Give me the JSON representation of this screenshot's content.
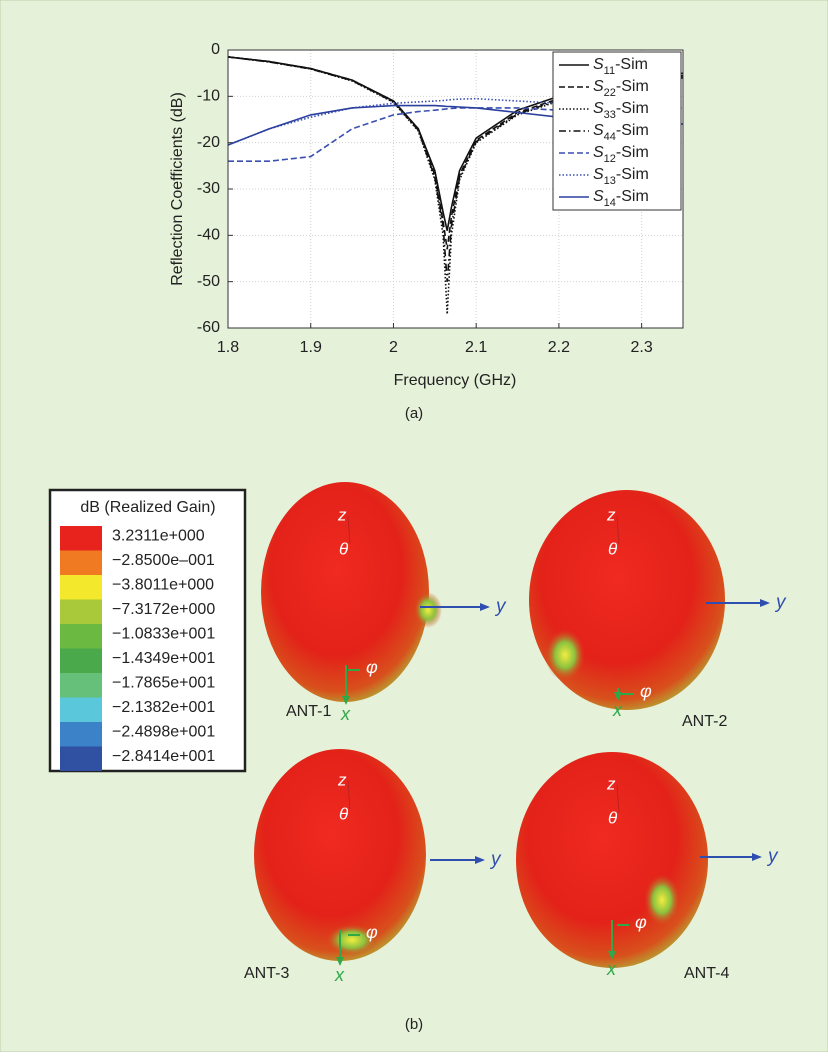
{
  "chart_data": {
    "type": "line",
    "y_label": "Reflection Coefficients (dB)",
    "x_label": "Frequency (GHz)",
    "panel_label": "(a)",
    "x": [
      1.8,
      1.85,
      1.9,
      1.95,
      2.0,
      2.03,
      2.05,
      2.06,
      2.065,
      2.07,
      2.08,
      2.1,
      2.15,
      2.2,
      2.25,
      2.3,
      2.35
    ],
    "xlim": [
      1.8,
      2.35
    ],
    "xticks": [
      1.8,
      1.9,
      2,
      2.1,
      2.2,
      2.3
    ],
    "ylim": [
      -60,
      0
    ],
    "yticks": [
      0,
      -10,
      -20,
      -30,
      -40,
      -50,
      -60
    ],
    "grid": true,
    "legend": "upper right",
    "series": [
      {
        "name": "S11-Sim",
        "color": "#111111",
        "line_style": "solid",
        "values": [
          -1.5,
          -2.5,
          -4,
          -6.5,
          -11,
          -17,
          -26,
          -35,
          -39,
          -34,
          -26,
          -19,
          -13,
          -10,
          -8,
          -6.5,
          -5
        ]
      },
      {
        "name": "S22-Sim",
        "color": "#111111",
        "line_style": "dashed",
        "values": [
          -1.5,
          -2.5,
          -4,
          -6.5,
          -11,
          -17,
          -27,
          -37,
          -43,
          -36,
          -27,
          -19.5,
          -13.5,
          -10.5,
          -8.5,
          -7,
          -5.5
        ]
      },
      {
        "name": "S33-Sim",
        "color": "#111111",
        "line_style": "dotted",
        "values": [
          -1.5,
          -2.6,
          -4.1,
          -6.7,
          -11.3,
          -17.5,
          -28,
          -40,
          -57,
          -40,
          -28,
          -20,
          -14,
          -11,
          -9,
          -7.5,
          -6
        ]
      },
      {
        "name": "S44-Sim",
        "color": "#111111",
        "line_style": "dashdot",
        "values": [
          -1.5,
          -2.6,
          -4.1,
          -6.6,
          -11.2,
          -17.3,
          -27.5,
          -38,
          -50,
          -38,
          -27.5,
          -19.8,
          -13.8,
          -10.8,
          -8.8,
          -7.2,
          -5.8
        ]
      },
      {
        "name": "S12-Sim",
        "color": "#3a4fb0",
        "line_style": "dashed",
        "values": [
          -24,
          -24,
          -23,
          -17,
          -14,
          -13.3,
          -13,
          -12.8,
          -12.7,
          -12.6,
          -12.5,
          -12.5,
          -12.5,
          -13,
          -14,
          -15,
          -16
        ]
      },
      {
        "name": "S13-Sim",
        "color": "#3a4fb0",
        "line_style": "dotted",
        "values": [
          -20.5,
          -17,
          -14.5,
          -12.5,
          -11.5,
          -11.2,
          -11,
          -10.9,
          -10.8,
          -10.7,
          -10.6,
          -10.5,
          -11,
          -11.5,
          -11.8,
          -12,
          -12.5
        ]
      },
      {
        "name": "S14-Sim",
        "color": "#2a3f9e",
        "line_style": "solid",
        "values": [
          -20.5,
          -17,
          -14,
          -12.5,
          -12,
          -12,
          -12,
          -12.1,
          -12.2,
          -12.2,
          -12.3,
          -12.5,
          -13.5,
          -14.5,
          -15,
          -15.5,
          -16
        ]
      }
    ]
  },
  "panel_b": {
    "panel_label": "(b)",
    "colorbar": {
      "title": "dB (Realized Gain)",
      "levels": [
        {
          "label": "3.2311e+000",
          "color": "#e8231e"
        },
        {
          "label": "−2.8500e–001",
          "color": "#f07a22"
        },
        {
          "label": "−3.8011e+000",
          "color": "#f3e82b"
        },
        {
          "label": "−7.3172e+000",
          "color": "#a9c83a"
        },
        {
          "label": "−1.0833e+001",
          "color": "#6cb942"
        },
        {
          "label": "−1.4349e+001",
          "color": "#4aa94a"
        },
        {
          "label": "−1.7865e+001",
          "color": "#66c07a"
        },
        {
          "label": "−2.1382e+001",
          "color": "#5ac8da"
        },
        {
          "label": "−2.4898e+001",
          "color": "#3c82c8"
        },
        {
          "label": "−2.8414e+001",
          "color": "#3050a2"
        }
      ]
    },
    "antennas": [
      "ANT-1",
      "ANT-2",
      "ANT-3",
      "ANT-4"
    ],
    "axis_labels": {
      "z": "z",
      "theta": "θ",
      "phi": "φ",
      "x": "x",
      "y": "y"
    }
  }
}
